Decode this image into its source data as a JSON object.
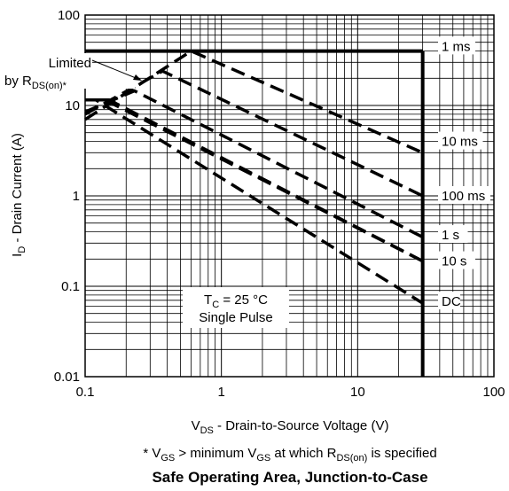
{
  "chart_data": {
    "type": "line",
    "title": "Safe Operating Area, Junction-to-Case",
    "footnote": {
      "prefix": "* V",
      "sub1": "GS",
      "mid": " > minimum V",
      "sub2": "GS",
      "mid2": " at which R",
      "sub3": "DS(on)",
      "suffix": " is specified"
    },
    "xlabel": {
      "main": "V",
      "sub": "DS",
      "rest": " - Drain-to-Source Voltage (V)"
    },
    "ylabel": {
      "main": "I",
      "sub": "D",
      "rest": " - Drain Current (A)"
    },
    "x_scale": "log",
    "y_scale": "log",
    "xlim": [
      0.1,
      100
    ],
    "ylim": [
      0.01,
      100
    ],
    "x_ticks": [
      "0.1",
      "1",
      "10",
      "100"
    ],
    "y_ticks": [
      "0.01",
      "0.1",
      "1",
      "10",
      "100"
    ],
    "grid": true,
    "limit_annotation": {
      "line1": "Limited",
      "line2_main": "by R",
      "line2_sub": "DS(on)*"
    },
    "condition_box": {
      "line1_main": "T",
      "line1_sub": "C",
      "line1_rest": " = 25 °C",
      "line2": "Single Pulse"
    },
    "boundary": {
      "id_max": 40,
      "vds_max": 30
    },
    "series": [
      {
        "name": "1 ms",
        "x": [
          0.1,
          0.6,
          30
        ],
        "y": [
          7,
          40,
          3
        ]
      },
      {
        "name": "10 ms",
        "x": [
          0.1,
          0.37,
          30
        ],
        "y": [
          8,
          24,
          1
        ]
      },
      {
        "name": "100 ms",
        "x": [
          0.1,
          0.23,
          30
        ],
        "y": [
          8.5,
          14.5,
          0.35
        ]
      },
      {
        "name": "1 s",
        "x": [
          0.1,
          0.15,
          30
        ],
        "y": [
          11.5,
          11.5,
          0.19
        ]
      },
      {
        "name": "10 s",
        "x": [
          0.1,
          0.14,
          30
        ],
        "y": [
          11.5,
          11.5,
          0.19
        ]
      },
      {
        "name": "DC",
        "x": [
          0.1,
          0.12,
          30
        ],
        "y": [
          11.5,
          11.5,
          0.065
        ]
      }
    ],
    "curve_labels": [
      {
        "name": "1 ms",
        "y": 45
      },
      {
        "name": "10 ms",
        "y": 4
      },
      {
        "name": "100 ms",
        "y": 1
      },
      {
        "name": "1 s",
        "y": 0.37
      },
      {
        "name": "10 s",
        "y": 0.19
      },
      {
        "name": "DC",
        "y": 0.068
      }
    ]
  }
}
